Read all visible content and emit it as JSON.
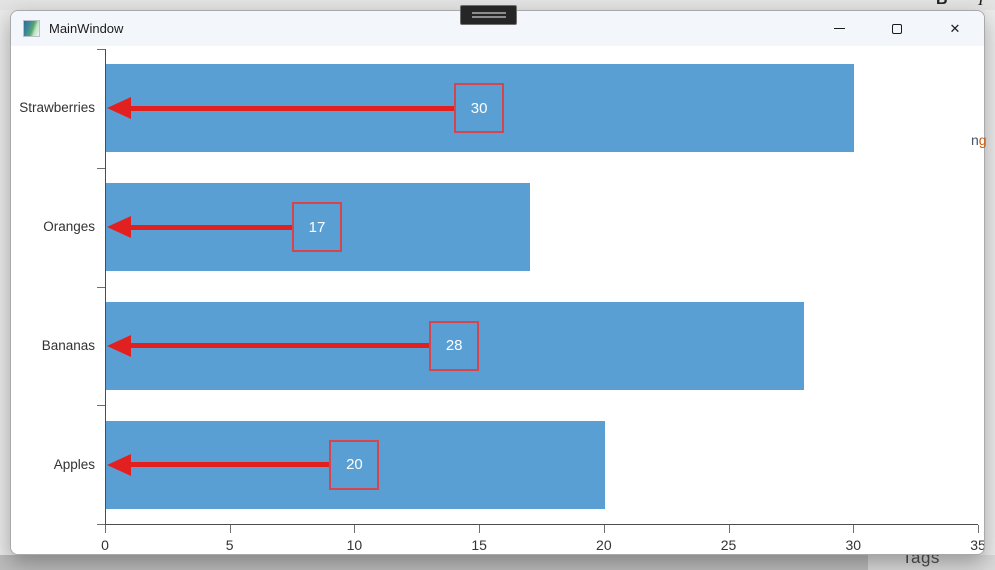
{
  "background": {
    "toolbar_bold_label": "B",
    "toolbar_italic_label": "I",
    "bottom_right_text": "Tags",
    "right_edge_fragment_n": "n",
    "right_edge_fragment_g": "g"
  },
  "window": {
    "title": "MainWindow",
    "controls": {
      "close_glyph": "✕"
    }
  },
  "chart_data": {
    "type": "bar",
    "orientation": "horizontal",
    "title": "",
    "xlabel": "",
    "ylabel": "",
    "categories": [
      "Strawberries",
      "Oranges",
      "Bananas",
      "Apples"
    ],
    "values": [
      30,
      17,
      28,
      20
    ],
    "value_labels": [
      "30",
      "17",
      "28",
      "20"
    ],
    "x_ticks": [
      0,
      5,
      10,
      15,
      20,
      25,
      30,
      35
    ],
    "xlim": [
      0,
      35
    ],
    "grid": false,
    "bar_color": "#5A9FD3",
    "arrow_color": "#E2201F",
    "value_box_border_color": "#D4454D",
    "value_text_color": "#FFFFFF",
    "axis_color": "#4d4d4d",
    "annotation_style": "red arrow from boxed value at bar midpoint pointing left to the y-axis"
  }
}
